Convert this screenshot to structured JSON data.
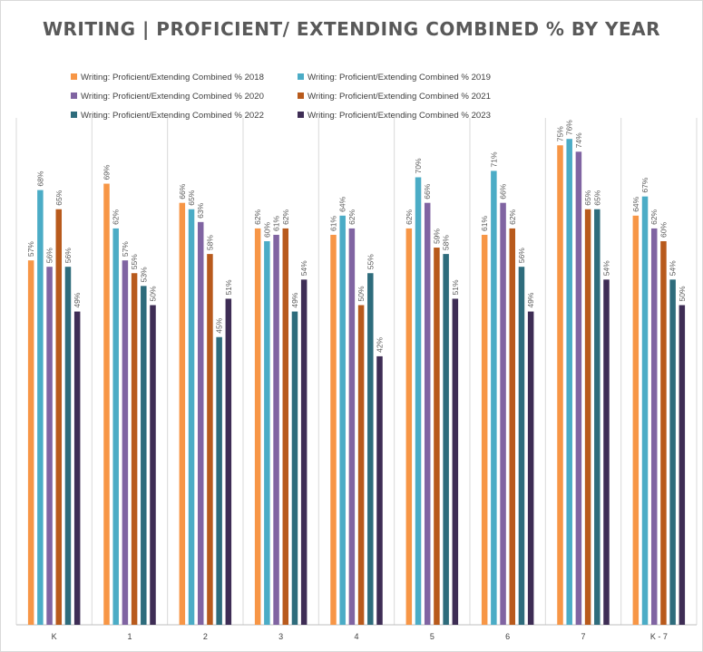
{
  "chart_data": {
    "type": "bar",
    "title": "WRITING | PROFICIENT/ EXTENDING COMBINED % BY YEAR",
    "xlabel": "",
    "ylabel": "",
    "ylim": [
      0,
      80
    ],
    "grid": "vertical category separators",
    "legend_placement": "top",
    "categories": [
      "K",
      "1",
      "2",
      "3",
      "4",
      "5",
      "6",
      "7",
      "K - 7"
    ],
    "series": [
      {
        "name": "Writing: Proficient/Extending Combined %  2018",
        "color": "#F79646",
        "values": [
          57,
          69,
          66,
          62,
          61,
          62,
          61,
          75,
          64
        ],
        "labels": [
          "57%",
          "69%",
          "66%",
          "62%",
          "61%",
          "62%",
          "61%",
          "75%",
          "64%"
        ]
      },
      {
        "name": "Writing: Proficient/Extending Combined %  2019",
        "color": "#4BACC6",
        "values": [
          68,
          62,
          65,
          60,
          64,
          70,
          71,
          76,
          67
        ],
        "labels": [
          "68%",
          "62%",
          "65%",
          "60%",
          "64%",
          "70%",
          "71%",
          "76%",
          "67%"
        ]
      },
      {
        "name": "Writing: Proficient/Extending Combined %  2020",
        "color": "#8064A2",
        "values": [
          56,
          57,
          63,
          61,
          62,
          66,
          66,
          74,
          62
        ],
        "labels": [
          "56%",
          "57%",
          "63%",
          "61%",
          "62%",
          "66%",
          "66%",
          "74%",
          "62%"
        ]
      },
      {
        "name": "Writing: Proficient/Extending Combined %  2021",
        "color": "#B85A1C",
        "values": [
          65,
          55,
          58,
          62,
          50,
          59,
          62,
          65,
          60
        ],
        "labels": [
          "65%",
          "55%",
          "58%",
          "62%",
          "50%",
          "59%",
          "62%",
          "65%",
          "60%"
        ]
      },
      {
        "name": "Writing: Proficient/Extending Combined %  2022",
        "color": "#2E6C7C",
        "values": [
          56,
          53,
          45,
          49,
          55,
          58,
          56,
          65,
          54
        ],
        "labels": [
          "56%",
          "53%",
          "45%",
          "49%",
          "55%",
          "58%",
          "56%",
          "65%",
          "54%"
        ]
      },
      {
        "name": "Writing: Proficient/Extending Combined %  2023",
        "color": "#3E2D55",
        "values": [
          49,
          50,
          51,
          54,
          42,
          51,
          49,
          54,
          50
        ],
        "labels": [
          "49%",
          "50%",
          "51%",
          "54%",
          "42%",
          "51%",
          "49%",
          "54%",
          "50%"
        ]
      }
    ]
  }
}
